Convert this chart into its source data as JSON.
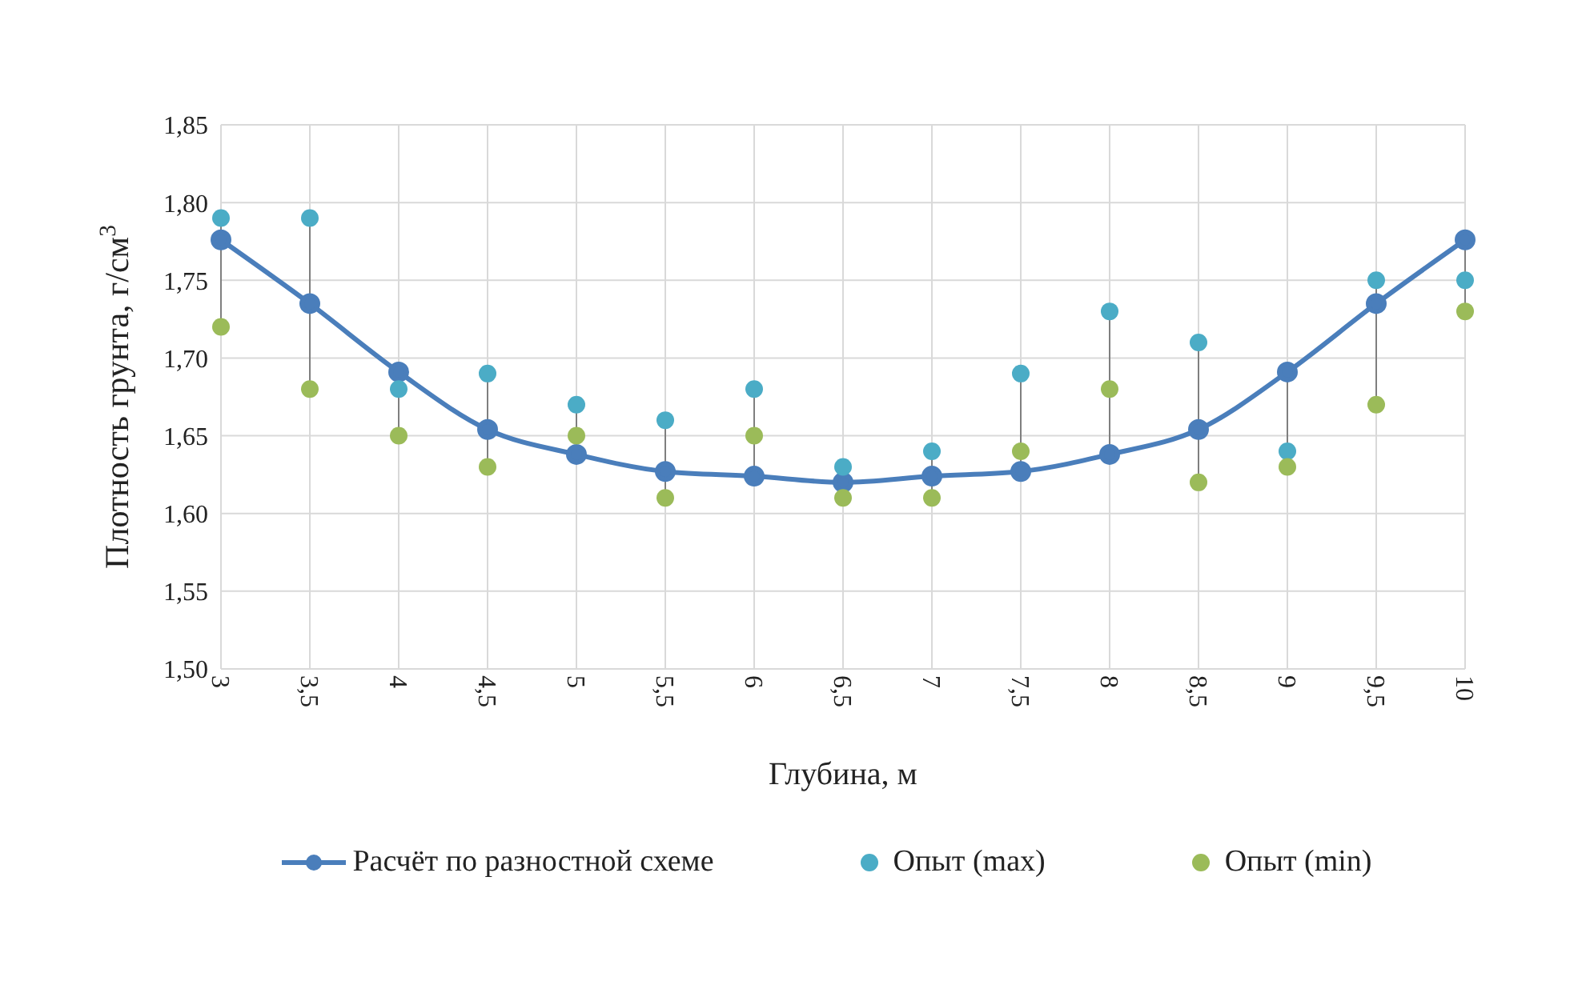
{
  "chart_data": {
    "type": "line",
    "xlabel": "Глубина, м",
    "ylabel": "Плотность грунта, г/см$^{3}$",
    "categories": [
      "3",
      "3,5",
      "4",
      "4,5",
      "5",
      "5,5",
      "6",
      "6,5",
      "7",
      "7,5",
      "8",
      "8,5",
      "9",
      "9,5",
      "10"
    ],
    "series": [
      {
        "name": "Расчёт по разностной схеме",
        "color": "#4a7ebb",
        "marker": "circle",
        "values": [
          1.776,
          1.735,
          1.691,
          1.654,
          1.638,
          1.627,
          1.624,
          1.62,
          1.624,
          1.627,
          1.638,
          1.654,
          1.691,
          1.735,
          1.776
        ]
      },
      {
        "name": "Опыт (max)",
        "type": "scatter",
        "color": "#4bacc6",
        "values": [
          1.79,
          1.79,
          1.68,
          1.69,
          1.67,
          1.66,
          1.68,
          1.63,
          1.64,
          1.69,
          1.73,
          1.71,
          1.64,
          1.75,
          1.75
        ]
      },
      {
        "name": "Опыт (min)",
        "type": "scatter",
        "color": "#9bbb59",
        "values": [
          1.72,
          1.68,
          1.65,
          1.63,
          1.65,
          1.61,
          1.65,
          1.61,
          1.61,
          1.64,
          1.68,
          1.62,
          1.63,
          1.67,
          1.73
        ]
      }
    ],
    "ylim": [
      1.5,
      1.85
    ],
    "yticks": [
      {
        "value": 1.5,
        "label": "1,50"
      },
      {
        "value": 1.55,
        "label": "1,55"
      },
      {
        "value": 1.6,
        "label": "1,60"
      },
      {
        "value": 1.65,
        "label": "1,65"
      },
      {
        "value": 1.7,
        "label": "1,70"
      },
      {
        "value": 1.75,
        "label": "1,75"
      },
      {
        "value": 1.8,
        "label": "1,80"
      },
      {
        "value": 1.85,
        "label": "1,85"
      }
    ],
    "grid": true,
    "legend": "bottom"
  }
}
